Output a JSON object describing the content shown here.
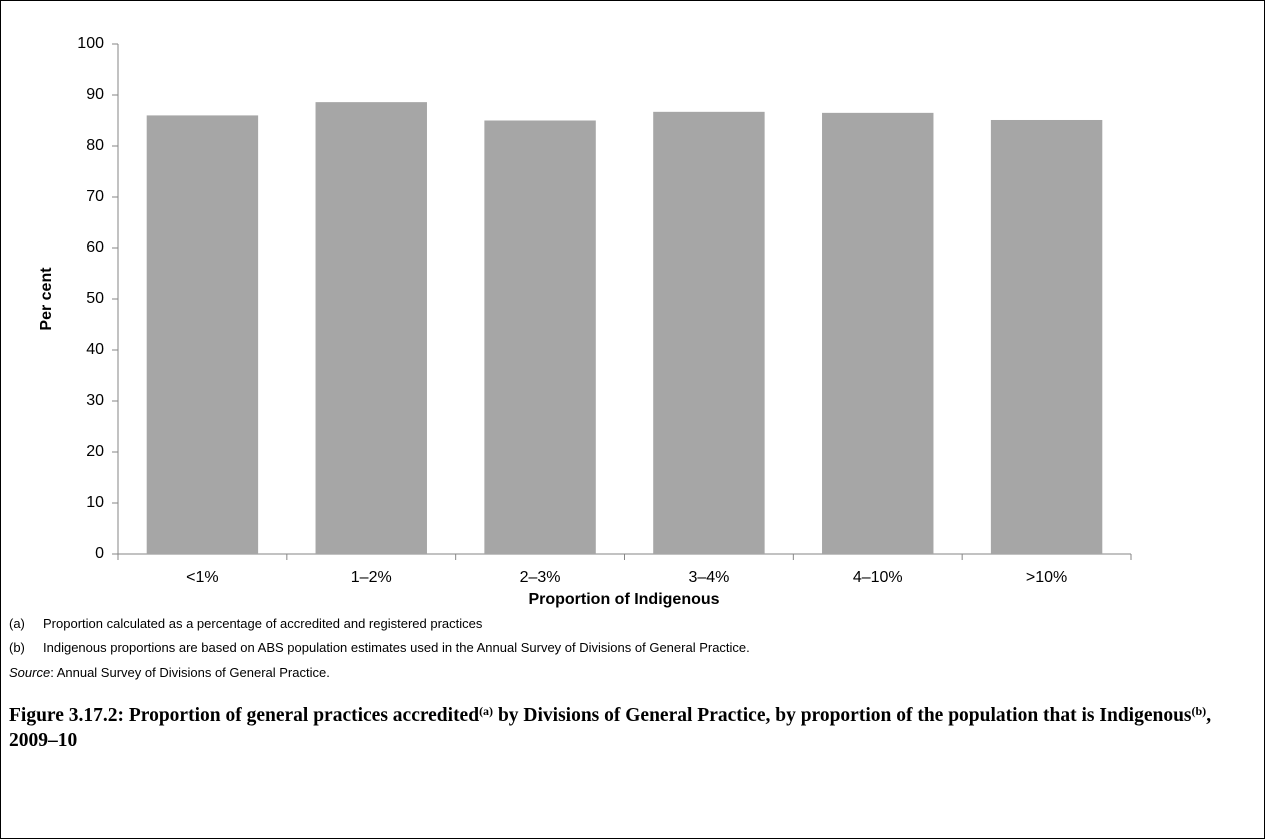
{
  "chart_data": {
    "type": "bar",
    "y_label": "Per cent",
    "x_label": "Proportion of Indigenous",
    "categories": [
      "<1%",
      "1–2%",
      "2–3%",
      "3–4%",
      "4–10%",
      ">10%"
    ],
    "values": [
      86,
      88.6,
      85,
      86.7,
      86.5,
      85.1
    ],
    "color": "#a6a6a6",
    "ylim": [
      0,
      100
    ],
    "yticks": [
      0,
      10,
      20,
      30,
      40,
      50,
      60,
      70,
      80,
      90,
      100
    ],
    "grid": false
  },
  "notes": [
    {
      "marker": "(a)",
      "text": "Proportion calculated as a percentage of accredited and registered practices"
    },
    {
      "marker": "(b)",
      "text": "Indigenous proportions are based on ABS population estimates used in the Annual Survey of Divisions of General Practice."
    }
  ],
  "source": {
    "label": "Source",
    "text": ": Annual Survey of Divisions of General Practice."
  },
  "caption": [
    "Figure 3.17.2: Proportion of general practices accredited",
    "(a)",
    " by Divisions of General Practice, by proportion of the population that is Indigenous",
    "(b)",
    ", 2009–10"
  ]
}
